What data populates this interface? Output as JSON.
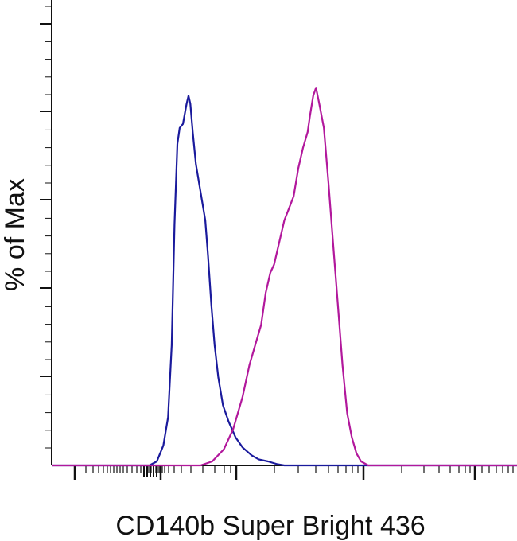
{
  "chart_data": {
    "type": "line",
    "title": "",
    "xlabel": "CD140b Super Bright 436",
    "ylabel": "% of Max",
    "xlim": [
      0,
      1
    ],
    "ylim": [
      0,
      100
    ],
    "x_tick_labels": [],
    "y_tick_labels": [],
    "grid": false,
    "legend": "none",
    "series": [
      {
        "color": "#1a1a9c",
        "points": [
          [
            0.0,
            0
          ],
          [
            0.21,
            0
          ],
          [
            0.226,
            1
          ],
          [
            0.24,
            5
          ],
          [
            0.25,
            12
          ],
          [
            0.258,
            30
          ],
          [
            0.264,
            60
          ],
          [
            0.27,
            80
          ],
          [
            0.275,
            84
          ],
          [
            0.282,
            85
          ],
          [
            0.29,
            90
          ],
          [
            0.294,
            92
          ],
          [
            0.298,
            90
          ],
          [
            0.303,
            83
          ],
          [
            0.31,
            75
          ],
          [
            0.32,
            68
          ],
          [
            0.33,
            61
          ],
          [
            0.336,
            52
          ],
          [
            0.343,
            40
          ],
          [
            0.35,
            30
          ],
          [
            0.358,
            22
          ],
          [
            0.368,
            15
          ],
          [
            0.38,
            11
          ],
          [
            0.395,
            7
          ],
          [
            0.41,
            4.5
          ],
          [
            0.43,
            2.5
          ],
          [
            0.445,
            1.5
          ],
          [
            0.465,
            1
          ],
          [
            0.485,
            0.3
          ],
          [
            0.5,
            0
          ],
          [
            1.0,
            0
          ]
        ]
      },
      {
        "color": "#b2189c",
        "points": [
          [
            0.0,
            0
          ],
          [
            0.32,
            0
          ],
          [
            0.345,
            1
          ],
          [
            0.37,
            4
          ],
          [
            0.39,
            9
          ],
          [
            0.41,
            17
          ],
          [
            0.425,
            25
          ],
          [
            0.44,
            31
          ],
          [
            0.45,
            35
          ],
          [
            0.46,
            43
          ],
          [
            0.47,
            48
          ],
          [
            0.478,
            50
          ],
          [
            0.49,
            56
          ],
          [
            0.5,
            61
          ],
          [
            0.51,
            64
          ],
          [
            0.52,
            67
          ],
          [
            0.53,
            74
          ],
          [
            0.54,
            79
          ],
          [
            0.55,
            83
          ],
          [
            0.555,
            87
          ],
          [
            0.562,
            92
          ],
          [
            0.568,
            94
          ],
          [
            0.575,
            90
          ],
          [
            0.585,
            84
          ],
          [
            0.595,
            70
          ],
          [
            0.605,
            55
          ],
          [
            0.615,
            40
          ],
          [
            0.625,
            25
          ],
          [
            0.635,
            13
          ],
          [
            0.645,
            7
          ],
          [
            0.655,
            3
          ],
          [
            0.665,
            1
          ],
          [
            0.68,
            0
          ],
          [
            1.0,
            0
          ]
        ]
      }
    ]
  }
}
